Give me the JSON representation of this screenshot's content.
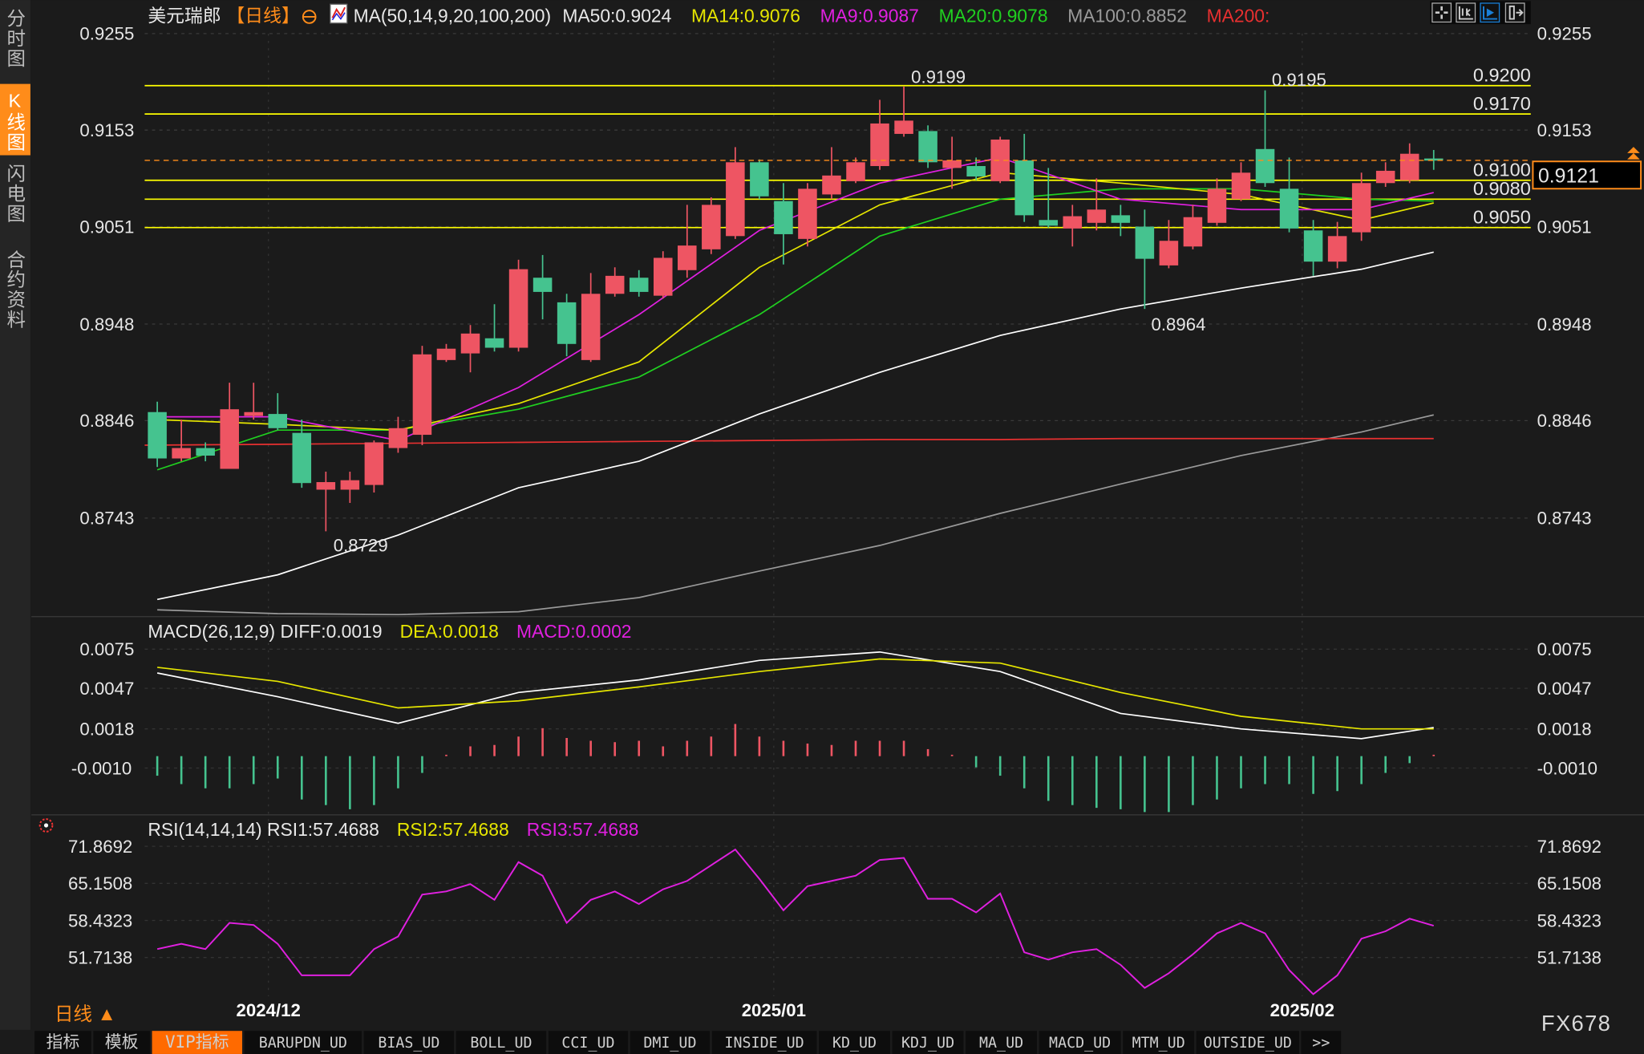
{
  "sidebar": {
    "tabs": [
      {
        "label": "分时图",
        "active": false
      },
      {
        "label": "K线图",
        "active": true
      },
      {
        "label": "闪电图",
        "active": false
      },
      {
        "label": "合约资料",
        "active": false
      }
    ]
  },
  "header": {
    "symbol": "美元瑞郎",
    "period": "【日线】",
    "ma_params": "MA(50,14,9,20,100,200)",
    "ma50": "MA50:0.9024",
    "ma14": "MA14:0.9076",
    "ma9": "MA9:0.9087",
    "ma20": "MA20:0.9078",
    "ma100": "MA100:0.8852",
    "ma200": "MA200:",
    "toolbar_icons": [
      "crosshair-icon",
      "range-select-icon",
      "auto-scroll-icon",
      "move-right-icon"
    ]
  },
  "colors": {
    "up": "#ee5563",
    "down": "#45c38f",
    "ma50": "#ffffff",
    "ma14": "#e6e600",
    "ma9": "#e020e0",
    "ma20": "#20d020",
    "ma100": "#9a9a9a",
    "ma200": "#e83030",
    "level_line": "#ffff00",
    "accent": "#ff8c1a"
  },
  "price_axis": {
    "ticks": [
      "0.9255",
      "0.9153",
      "0.9051",
      "0.8948",
      "0.8846",
      "0.8743"
    ],
    "current_price": "0.9121"
  },
  "level_lines": [
    "0.9200",
    "0.9170",
    "0.9100",
    "0.9080",
    "0.9050"
  ],
  "annotations": {
    "high1": "0.9199",
    "high2": "0.9195",
    "low1": "0.8729",
    "low2": "0.8964"
  },
  "date_axis": [
    "2024/12",
    "2025/01",
    "2025/02"
  ],
  "macd_panel": {
    "title": "MACD(26,12,9) DIFF:0.0019",
    "dea": "DEA:0.0018",
    "macd": "MACD:0.0002",
    "ticks": [
      "0.0075",
      "0.0047",
      "0.0018",
      "-0.0010"
    ]
  },
  "rsi_panel": {
    "title": "RSI(14,14,14) RSI1:57.4688",
    "rsi2": "RSI2:57.4688",
    "rsi3": "RSI3:57.4688",
    "ticks": [
      "71.8692",
      "65.1508",
      "58.4323",
      "51.7138"
    ]
  },
  "footer": {
    "period_label": "日线 ▲",
    "brand": "FX678",
    "tabs": [
      {
        "label": "指标",
        "active": false
      },
      {
        "label": "模板",
        "active": false
      },
      {
        "label": "VIP指标",
        "active": true
      },
      {
        "label": "BARUPDN_UD",
        "active": false
      },
      {
        "label": "BIAS_UD",
        "active": false
      },
      {
        "label": "BOLL_UD",
        "active": false
      },
      {
        "label": "CCI_UD",
        "active": false
      },
      {
        "label": "DMI_UD",
        "active": false
      },
      {
        "label": "INSIDE_UD",
        "active": false
      },
      {
        "label": "KD_UD",
        "active": false
      },
      {
        "label": "KDJ_UD",
        "active": false
      },
      {
        "label": "MA_UD",
        "active": false
      },
      {
        "label": "MACD_UD",
        "active": false
      },
      {
        "label": "MTM_UD",
        "active": false
      },
      {
        "label": "OUTSIDE_UD",
        "active": false
      },
      {
        "label": ">>",
        "active": false
      }
    ]
  },
  "chart_data": {
    "type": "candlestick",
    "ohlc": [
      [
        0.8855,
        0.8866,
        0.8797,
        0.8806
      ],
      [
        0.8806,
        0.8847,
        0.8803,
        0.8817
      ],
      [
        0.8817,
        0.8823,
        0.8803,
        0.8809
      ],
      [
        0.8795,
        0.8886,
        0.8795,
        0.8858
      ],
      [
        0.8851,
        0.8886,
        0.8847,
        0.8855
      ],
      [
        0.8853,
        0.8875,
        0.8836,
        0.8838
      ],
      [
        0.8833,
        0.8847,
        0.8775,
        0.878
      ],
      [
        0.8773,
        0.8792,
        0.8729,
        0.8781
      ],
      [
        0.8773,
        0.8792,
        0.8759,
        0.8783
      ],
      [
        0.8778,
        0.8825,
        0.877,
        0.8823
      ],
      [
        0.8817,
        0.885,
        0.8812,
        0.8838
      ],
      [
        0.8831,
        0.8925,
        0.882,
        0.8916
      ],
      [
        0.891,
        0.8927,
        0.8908,
        0.8922
      ],
      [
        0.8917,
        0.8947,
        0.8897,
        0.8938
      ],
      [
        0.8933,
        0.8969,
        0.8919,
        0.8923
      ],
      [
        0.8923,
        0.9016,
        0.8919,
        0.9006
      ],
      [
        0.8997,
        0.9021,
        0.8953,
        0.8982
      ],
      [
        0.8971,
        0.898,
        0.8914,
        0.8927
      ],
      [
        0.891,
        0.9002,
        0.8908,
        0.898
      ],
      [
        0.898,
        0.9008,
        0.8977,
        0.8999
      ],
      [
        0.8997,
        0.9005,
        0.8977,
        0.8982
      ],
      [
        0.8978,
        0.9025,
        0.8975,
        0.9018
      ],
      [
        0.9005,
        0.9074,
        0.8997,
        0.9031
      ],
      [
        0.9027,
        0.9082,
        0.9022,
        0.9074
      ],
      [
        0.9041,
        0.9135,
        0.9038,
        0.9119
      ],
      [
        0.9119,
        0.9122,
        0.908,
        0.9083
      ],
      [
        0.9078,
        0.9097,
        0.9011,
        0.9043
      ],
      [
        0.9038,
        0.9097,
        0.903,
        0.9091
      ],
      [
        0.9085,
        0.9135,
        0.908,
        0.9105
      ],
      [
        0.9099,
        0.9124,
        0.9097,
        0.9119
      ],
      [
        0.9115,
        0.9185,
        0.9111,
        0.916
      ],
      [
        0.9149,
        0.9199,
        0.9146,
        0.9163
      ],
      [
        0.9152,
        0.9158,
        0.9113,
        0.9119
      ],
      [
        0.9113,
        0.9146,
        0.9091,
        0.9121
      ],
      [
        0.9115,
        0.9124,
        0.91,
        0.9104
      ],
      [
        0.9099,
        0.9146,
        0.9097,
        0.9143
      ],
      [
        0.9121,
        0.9149,
        0.9056,
        0.9063
      ],
      [
        0.9058,
        0.9113,
        0.905,
        0.9052
      ],
      [
        0.9049,
        0.9074,
        0.903,
        0.9062
      ],
      [
        0.9055,
        0.9102,
        0.9047,
        0.9069
      ],
      [
        0.9063,
        0.9074,
        0.9041,
        0.9055
      ],
      [
        0.9051,
        0.9069,
        0.8964,
        0.9017
      ],
      [
        0.901,
        0.9058,
        0.9007,
        0.9036
      ],
      [
        0.903,
        0.9074,
        0.9027,
        0.9061
      ],
      [
        0.9055,
        0.9102,
        0.9052,
        0.9091
      ],
      [
        0.908,
        0.9119,
        0.9078,
        0.9108
      ],
      [
        0.9133,
        0.9195,
        0.9093,
        0.9097
      ],
      [
        0.9091,
        0.9124,
        0.9045,
        0.9049
      ],
      [
        0.9047,
        0.9058,
        0.8999,
        0.9014
      ],
      [
        0.9014,
        0.9056,
        0.9007,
        0.9041
      ],
      [
        0.9045,
        0.9108,
        0.9036,
        0.9097
      ],
      [
        0.9097,
        0.9119,
        0.9093,
        0.911
      ],
      [
        0.91,
        0.9139,
        0.9097,
        0.9128
      ],
      [
        0.9123,
        0.9132,
        0.9111,
        0.9121
      ]
    ],
    "ma_sample_every": 5,
    "ma": {
      "ma50": [
        0.8657,
        0.8683,
        0.8725,
        0.8775,
        0.8803,
        0.8853,
        0.8897,
        0.8936,
        0.8964,
        0.8986,
        0.9006,
        0.9024
      ],
      "ma100": [
        0.8646,
        0.8642,
        0.8641,
        0.8644,
        0.8659,
        0.8687,
        0.8714,
        0.8748,
        0.8779,
        0.8809,
        0.8834,
        0.8852
      ],
      "ma200": [
        0.882,
        0.8821,
        0.8822,
        0.8823,
        0.8824,
        0.8825,
        0.8826,
        0.8826,
        0.8827,
        0.8827,
        0.8827,
        0.8827
      ],
      "ma9": [
        0.885,
        0.885,
        0.8825,
        0.8881,
        0.8958,
        0.9047,
        0.9097,
        0.9124,
        0.908,
        0.9069,
        0.9069,
        0.9087
      ],
      "ma14": [
        0.8847,
        0.8842,
        0.8836,
        0.8864,
        0.8908,
        0.9008,
        0.9074,
        0.9108,
        0.9097,
        0.9085,
        0.9058,
        0.9076
      ],
      "ma20": [
        0.8794,
        0.8836,
        0.8836,
        0.8858,
        0.8892,
        0.8958,
        0.9041,
        0.908,
        0.9091,
        0.9091,
        0.908,
        0.9078
      ]
    },
    "price_range": [
      0.8743,
      0.9255
    ],
    "macd": {
      "hist": [
        -0.0014,
        -0.002,
        -0.0023,
        -0.0023,
        -0.002,
        -0.0016,
        -0.0031,
        -0.0035,
        -0.0038,
        -0.0035,
        -0.0023,
        -0.0012,
        0.0001,
        0.0007,
        0.0008,
        0.0014,
        0.002,
        0.0013,
        0.0011,
        0.001,
        0.0011,
        0.0007,
        0.0011,
        0.0014,
        0.0023,
        0.0014,
        0.0011,
        0.0009,
        0.0008,
        0.0011,
        0.0011,
        0.0011,
        0.0005,
        0.0001,
        -0.0008,
        -0.0014,
        -0.0023,
        -0.0032,
        -0.0035,
        -0.0037,
        -0.0038,
        -0.004,
        -0.004,
        -0.0035,
        -0.0031,
        -0.0023,
        -0.002,
        -0.002,
        -0.0027,
        -0.0025,
        -0.002,
        -0.0012,
        -0.0005,
        0.0001
      ],
      "diff": [
        0.0058,
        0.0041,
        0.0022,
        0.0044,
        0.0053,
        0.0067,
        0.0073,
        0.0059,
        0.0029,
        0.0018,
        0.0011,
        0.0019
      ],
      "dea": [
        0.0062,
        0.0052,
        0.0033,
        0.0038,
        0.0048,
        0.0059,
        0.0068,
        0.0065,
        0.0044,
        0.0027,
        0.0018,
        0.0018
      ]
    },
    "rsi": [
      53.24,
      54.19,
      53.24,
      57.99,
      57.61,
      54.19,
      48.48,
      48.48,
      48.48,
      53.24,
      55.52,
      63.12,
      63.69,
      65.02,
      62.17,
      69.02,
      66.55,
      57.99,
      62.17,
      63.69,
      61.41,
      64.07,
      65.6,
      68.45,
      71.3,
      65.98,
      60.27,
      64.64,
      65.6,
      66.55,
      69.4,
      69.78,
      62.36,
      62.36,
      59.89,
      63.31,
      52.66,
      51.33,
      52.66,
      53.24,
      50.38,
      46.2,
      48.86,
      52.28,
      56.09,
      57.99,
      56.09,
      49.43,
      45.06,
      48.48,
      55.14,
      56.47,
      58.75,
      57.47
    ]
  }
}
